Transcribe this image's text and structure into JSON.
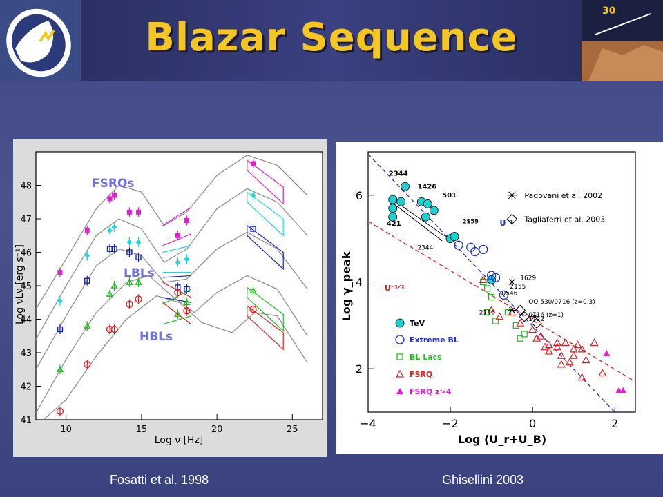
{
  "title": "Blazar Sequence",
  "captions": {
    "left": "Fosatti et al. 1998",
    "right": "Ghisellini 2003"
  },
  "colors": {
    "title": "#f3c623",
    "magenta": "#e020d0",
    "cyan": "#20d8e0",
    "blue": "#1020c0",
    "green": "#20c020",
    "red": "#e02020",
    "gray": "#909090"
  },
  "chart_data": [
    {
      "type": "line",
      "xlabel": "Log ν [Hz]",
      "ylabel": "Log νLν [erg s⁻¹]",
      "xlim": [
        8,
        27
      ],
      "ylim": [
        41,
        49
      ],
      "xticks": [
        "10",
        "15",
        "20",
        "25"
      ],
      "yticks": [
        "41",
        "42",
        "43",
        "44",
        "45",
        "46",
        "47",
        "48"
      ],
      "annotations": [
        "FSRQs",
        "LBLs",
        "HBLs"
      ],
      "series": [
        {
          "color": "magenta",
          "points": [
            [
              9.6,
              45.4
            ],
            [
              11.4,
              46.65
            ],
            [
              12.9,
              47.6
            ],
            [
              13.2,
              47.7
            ],
            [
              14.2,
              47.2
            ],
            [
              14.8,
              47.2
            ],
            [
              17.4,
              46.5
            ],
            [
              18.0,
              46.95
            ],
            [
              22.4,
              48.65
            ]
          ]
        },
        {
          "color": "cyan",
          "points": [
            [
              9.6,
              44.55
            ],
            [
              11.4,
              45.9
            ],
            [
              12.9,
              46.65
            ],
            [
              13.2,
              46.75
            ],
            [
              14.2,
              46.3
            ],
            [
              14.8,
              46.3
            ],
            [
              17.4,
              45.7
            ],
            [
              18.0,
              45.8
            ],
            [
              22.4,
              47.7
            ]
          ]
        },
        {
          "color": "blue",
          "points": [
            [
              9.6,
              43.7
            ],
            [
              11.4,
              45.15
            ],
            [
              12.9,
              46.1
            ],
            [
              13.2,
              46.1
            ],
            [
              14.2,
              46.0
            ],
            [
              14.8,
              45.85
            ],
            [
              17.4,
              44.95
            ],
            [
              18.0,
              44.9
            ],
            [
              22.4,
              46.7
            ]
          ]
        },
        {
          "color": "green",
          "points": [
            [
              9.6,
              42.5
            ],
            [
              11.4,
              43.8
            ],
            [
              12.9,
              44.75
            ],
            [
              13.2,
              45.0
            ],
            [
              14.2,
              45.1
            ],
            [
              14.8,
              45.1
            ],
            [
              17.4,
              44.15
            ],
            [
              18.0,
              44.5
            ],
            [
              22.4,
              44.85
            ]
          ]
        },
        {
          "color": "red",
          "points": [
            [
              9.6,
              41.25
            ],
            [
              11.4,
              42.65
            ],
            [
              12.9,
              43.7
            ],
            [
              13.2,
              43.7
            ],
            [
              14.2,
              44.45
            ],
            [
              14.8,
              44.6
            ],
            [
              17.4,
              44.8
            ],
            [
              18.0,
              44.25
            ],
            [
              22.4,
              44.3
            ]
          ]
        }
      ],
      "models": [
        [
          [
            8,
            44.3
          ],
          [
            10,
            45.8
          ],
          [
            12,
            47.3
          ],
          [
            13.5,
            48.0
          ],
          [
            15,
            47.8
          ],
          [
            16.5,
            46.8
          ],
          [
            18,
            47.2
          ],
          [
            20,
            48.3
          ],
          [
            22,
            48.9
          ],
          [
            24,
            48.6
          ],
          [
            26,
            47.7
          ]
        ],
        [
          [
            8,
            43.4
          ],
          [
            10,
            45.0
          ],
          [
            12,
            46.5
          ],
          [
            13.5,
            47.0
          ],
          [
            15,
            46.7
          ],
          [
            16.5,
            45.7
          ],
          [
            18,
            46.1
          ],
          [
            20,
            47.3
          ],
          [
            22,
            47.9
          ],
          [
            24,
            47.5
          ],
          [
            26,
            46.5
          ]
        ],
        [
          [
            8,
            42.5
          ],
          [
            10,
            44.1
          ],
          [
            12,
            45.6
          ],
          [
            13.5,
            46.1
          ],
          [
            15,
            45.9
          ],
          [
            16.5,
            45.1
          ],
          [
            18,
            45.2
          ],
          [
            20,
            46.1
          ],
          [
            22,
            46.6
          ],
          [
            24,
            46.1
          ],
          [
            26,
            44.9
          ]
        ],
        [
          [
            8,
            41.2
          ],
          [
            10,
            42.8
          ],
          [
            12,
            44.2
          ],
          [
            14,
            45.1
          ],
          [
            15.5,
            45.3
          ],
          [
            17,
            44.7
          ],
          [
            18.5,
            44.2
          ],
          [
            20,
            44.8
          ],
          [
            22,
            45.3
          ],
          [
            24,
            44.9
          ],
          [
            26,
            43.5
          ]
        ],
        [
          [
            8.5,
            41.0
          ],
          [
            10,
            41.6
          ],
          [
            12,
            42.9
          ],
          [
            14,
            44.0
          ],
          [
            16,
            44.7
          ],
          [
            17.5,
            44.5
          ],
          [
            19,
            43.9
          ],
          [
            21,
            43.6
          ],
          [
            22.5,
            44.2
          ],
          [
            24,
            44.1
          ],
          [
            26,
            42.7
          ]
        ]
      ]
    },
    {
      "type": "scatter",
      "xlabel": "Log (U_r+U_B)",
      "ylabel": "Log γ_peak",
      "xlim": [
        -4,
        2.5
      ],
      "ylim": [
        1,
        7
      ],
      "xticks": [
        "−4",
        "−2",
        "0",
        "2"
      ],
      "yticks": [
        "2",
        "4",
        "6"
      ],
      "line_labels": [
        "U⁻¹",
        "U⁻¹ᐟ²"
      ],
      "legend": [
        "TeV",
        "Extreme BL",
        "BL Lacs",
        "FSRQ",
        "FSRQ z>4"
      ],
      "legend_top": [
        "Padovani et al. 2002",
        "Tagliaferri et al. 2003"
      ],
      "point_labels": [
        "2344",
        "1426",
        "501",
        "421",
        "2155",
        "1959",
        "2344",
        "1629",
        "2155",
        "0546",
        "2116",
        "OQ 530/0716 (z=0.3)",
        "0716 (z=1)",
        "1722"
      ],
      "series": [
        {
          "name": "TeV",
          "points": [
            [
              -3.1,
              6.2
            ],
            [
              -3.4,
              5.9
            ],
            [
              -3.4,
              5.7
            ],
            [
              -3.2,
              5.85
            ],
            [
              -2.7,
              5.85
            ],
            [
              -2.55,
              5.8
            ],
            [
              -2.4,
              5.65
            ],
            [
              -2.6,
              5.5
            ],
            [
              -2.0,
              5.0
            ],
            [
              -1.9,
              5.05
            ],
            [
              -3.4,
              5.5
            ],
            [
              -1.0,
              4.05
            ]
          ]
        },
        {
          "name": "Extreme BL",
          "points": [
            [
              -1.8,
              4.85
            ],
            [
              -1.5,
              4.8
            ],
            [
              -1.4,
              4.7
            ],
            [
              -1.2,
              4.75
            ],
            [
              -1.0,
              4.15
            ],
            [
              -0.9,
              4.1
            ],
            [
              -0.7,
              3.7
            ]
          ]
        },
        {
          "name": "BL Lacs",
          "points": [
            [
              -1.2,
              4.0
            ],
            [
              -1.1,
              3.85
            ],
            [
              -1.0,
              3.65
            ],
            [
              -1.1,
              3.3
            ],
            [
              -0.9,
              3.1
            ],
            [
              -0.6,
              3.3
            ],
            [
              -0.4,
              3.0
            ],
            [
              -0.3,
              2.7
            ],
            [
              -0.2,
              2.8
            ]
          ]
        },
        {
          "name": "FSRQ",
          "points": [
            [
              -1.2,
              4.05
            ],
            [
              -1.0,
              3.35
            ],
            [
              -0.8,
              3.2
            ],
            [
              -0.5,
              3.3
            ],
            [
              -0.3,
              3.05
            ],
            [
              0.0,
              2.9
            ],
            [
              0.1,
              2.7
            ],
            [
              0.2,
              2.75
            ],
            [
              0.3,
              2.5
            ],
            [
              0.4,
              2.55
            ],
            [
              0.6,
              2.5
            ],
            [
              0.7,
              2.3
            ],
            [
              0.8,
              2.6
            ],
            [
              0.9,
              2.15
            ],
            [
              1.0,
              2.45
            ],
            [
              1.1,
              2.55
            ],
            [
              1.2,
              2.45
            ],
            [
              1.3,
              2.2
            ],
            [
              1.5,
              2.6
            ],
            [
              1.7,
              1.9
            ],
            [
              0.6,
              2.6
            ],
            [
              1.2,
              1.8
            ],
            [
              0.7,
              2.1
            ],
            [
              0.4,
              2.4
            ],
            [
              1.0,
              2.3
            ]
          ]
        },
        {
          "name": "FSRQ z>4",
          "points": [
            [
              1.8,
              2.35
            ],
            [
              2.1,
              1.5
            ],
            [
              2.2,
              1.5
            ]
          ]
        }
      ],
      "lines": [
        {
          "name": "U⁻¹",
          "from": [
            -4,
            6.95
          ],
          "to": [
            2,
            1.0
          ]
        },
        {
          "name": "U⁻¹ᐟ²",
          "from": [
            -4,
            5.4
          ],
          "to": [
            2.5,
            1.7
          ]
        }
      ]
    }
  ]
}
